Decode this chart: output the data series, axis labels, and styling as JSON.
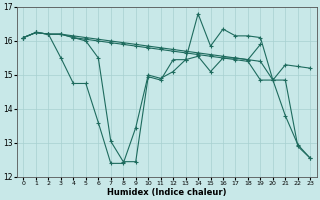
{
  "xlabel": "Humidex (Indice chaleur)",
  "xlim": [
    -0.5,
    23.5
  ],
  "ylim": [
    12,
    17
  ],
  "yticks": [
    12,
    13,
    14,
    15,
    16,
    17
  ],
  "xticks": [
    0,
    1,
    2,
    3,
    4,
    5,
    6,
    7,
    8,
    9,
    10,
    11,
    12,
    13,
    14,
    15,
    16,
    17,
    18,
    19,
    20,
    21,
    22,
    23
  ],
  "line_color": "#1e6b5e",
  "bg_color": "#c8e8e8",
  "grid_color": "#a8d0d0",
  "line1_x": [
    0,
    1,
    2,
    3,
    4,
    5,
    6,
    7,
    8,
    9,
    10,
    11,
    12,
    13,
    14,
    15,
    16,
    17,
    18,
    19
  ],
  "line1_y": [
    16.1,
    16.25,
    16.2,
    16.2,
    16.15,
    16.1,
    16.05,
    16.0,
    15.95,
    15.9,
    15.85,
    15.8,
    15.75,
    15.7,
    15.65,
    15.6,
    15.55,
    15.5,
    15.45,
    15.9
  ],
  "line2_x": [
    0,
    1,
    2,
    3,
    4,
    5,
    6,
    7,
    8,
    9,
    10,
    11,
    12,
    13,
    14,
    15,
    16,
    17,
    18,
    19,
    20,
    21,
    22,
    23
  ],
  "line2_y": [
    16.1,
    16.25,
    16.2,
    15.5,
    14.75,
    14.75,
    13.6,
    12.4,
    12.4,
    13.45,
    15.0,
    14.9,
    15.1,
    15.45,
    15.55,
    15.1,
    15.5,
    15.5,
    15.45,
    15.4,
    14.85,
    15.3,
    15.25,
    15.2
  ],
  "line3_x": [
    0,
    1,
    2,
    3,
    4,
    5,
    6,
    7,
    8,
    9,
    10,
    11,
    12,
    13,
    14,
    15,
    16,
    17,
    18,
    19,
    20,
    21,
    22,
    23
  ],
  "line3_y": [
    16.1,
    16.25,
    16.2,
    16.2,
    16.1,
    16.0,
    15.5,
    13.05,
    12.45,
    12.45,
    14.95,
    14.85,
    15.45,
    15.45,
    16.8,
    15.85,
    16.35,
    16.15,
    16.15,
    16.1,
    14.85,
    14.85,
    12.9,
    12.55
  ],
  "line4_x": [
    0,
    1,
    2,
    3,
    4,
    5,
    6,
    7,
    8,
    9,
    10,
    11,
    12,
    13,
    14,
    15,
    16,
    17,
    18,
    19,
    20,
    21,
    22,
    23
  ],
  "line4_y": [
    16.1,
    16.25,
    16.2,
    16.2,
    16.1,
    16.05,
    16.0,
    15.95,
    15.9,
    15.85,
    15.8,
    15.75,
    15.7,
    15.65,
    15.6,
    15.55,
    15.5,
    15.45,
    15.4,
    14.85,
    14.85,
    13.8,
    12.95,
    12.55
  ]
}
